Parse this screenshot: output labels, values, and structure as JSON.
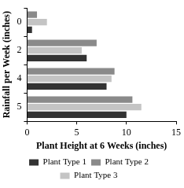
{
  "chart_data": {
    "type": "bar",
    "orientation": "horizontal",
    "x_label": "Plant Height at 6 Weeks (inches)",
    "y_label": "Rainfall per Week (inches)",
    "categories": [
      "0",
      "2",
      "4",
      "5"
    ],
    "series": [
      {
        "name": "Plant Type 1",
        "color": "#333333",
        "values": [
          0.5,
          6,
          8,
          10
        ]
      },
      {
        "name": "Plant Type 2",
        "color": "#8a8a8a",
        "values": [
          1,
          7,
          8.8,
          10.6
        ]
      },
      {
        "name": "Plant Type 3",
        "color": "#c4c4c4",
        "values": [
          2,
          5.5,
          8.5,
          11.5
        ]
      }
    ],
    "xlim": [
      0,
      15
    ],
    "xticks": [
      0,
      5,
      10,
      15
    ],
    "grid": false,
    "legend": "bottom"
  }
}
